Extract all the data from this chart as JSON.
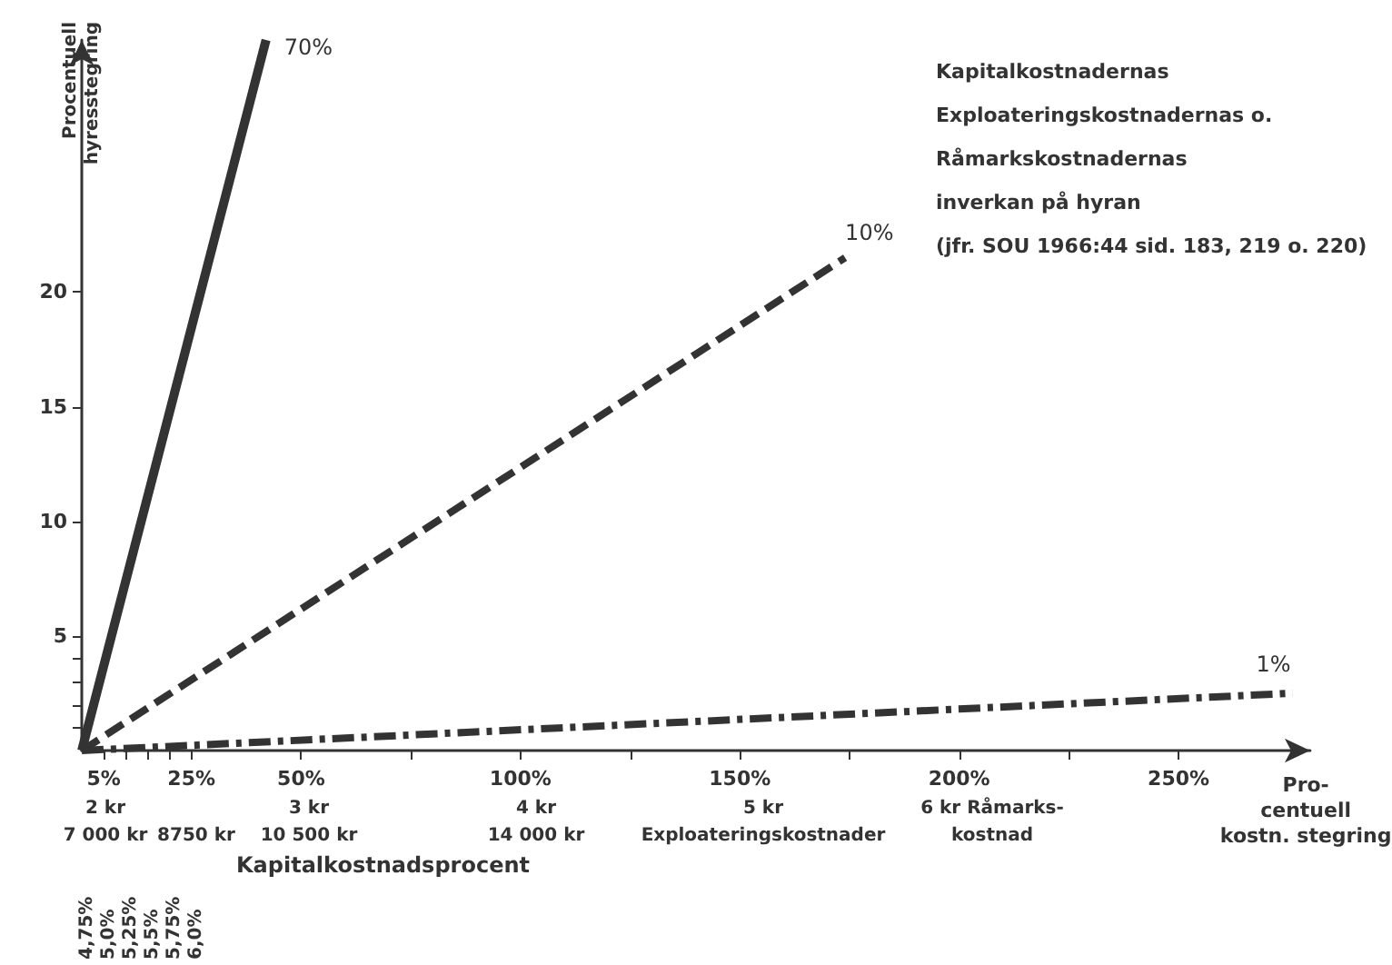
{
  "chart_data": {
    "type": "line",
    "xlabel": "Pro-\ncentuell\nkostn. stegring",
    "ylabel": "Procentuell\nhyresstegring",
    "series": [
      {
        "name": "70%",
        "color": "#333333",
        "line_style": "solid",
        "x": [
          0,
          42
        ],
        "values": [
          0,
          31
        ]
      },
      {
        "name": "10%",
        "color": "#333333",
        "line_style": "dashed",
        "x": [
          0,
          174
        ],
        "values": [
          0,
          21.5
        ]
      },
      {
        "name": "1%",
        "color": "#333333",
        "line_style": "dotted",
        "x": [
          0,
          276
        ],
        "values": [
          0,
          2.5
        ]
      }
    ],
    "xlim": [
      0,
      280
    ],
    "xticks": [
      {
        "value": 5,
        "label": "5%"
      },
      {
        "value": 10,
        "label": null
      },
      {
        "value": 15,
        "label": null
      },
      {
        "value": 20,
        "label": null
      },
      {
        "value": 25,
        "label": "25%"
      },
      {
        "value": 50,
        "label": "50%"
      },
      {
        "value": 75,
        "label": null
      },
      {
        "value": 100,
        "label": "100%"
      },
      {
        "value": 125,
        "label": null
      },
      {
        "value": 150,
        "label": "150%"
      },
      {
        "value": 175,
        "label": null
      },
      {
        "value": 200,
        "label": "200%"
      },
      {
        "value": 225,
        "label": null
      },
      {
        "value": 250,
        "label": "250%"
      }
    ],
    "ylim": [
      0,
      31
    ],
    "yticks": [
      {
        "value": 1,
        "label": null
      },
      {
        "value": 2,
        "label": null
      },
      {
        "value": 3,
        "label": null
      },
      {
        "value": 4,
        "label": null
      },
      5,
      10,
      15,
      20
    ],
    "grid": false,
    "legend": false,
    "marker": "none",
    "annotations": [
      "Kapitalkostnadernas",
      "Exploateringskostnadernas o.",
      "Råmarkskostnadernas",
      "inverkan på hyran",
      "(jfr. SOU 1966:44 sid. 183, 219 o. 220)",
      "4,75%",
      "5,0%",
      "5,25%",
      "5,5%",
      "5,75%",
      "6,0%",
      "Kapitalkostnadsprocent",
      "2 kr",
      "7 000 kr",
      "8750 kr",
      "3 kr",
      "10 500 kr",
      "4 kr",
      "14 000 kr",
      "5 kr",
      "Exploateringskostnader",
      "6 kr Råmarks-",
      "kostnad"
    ]
  }
}
